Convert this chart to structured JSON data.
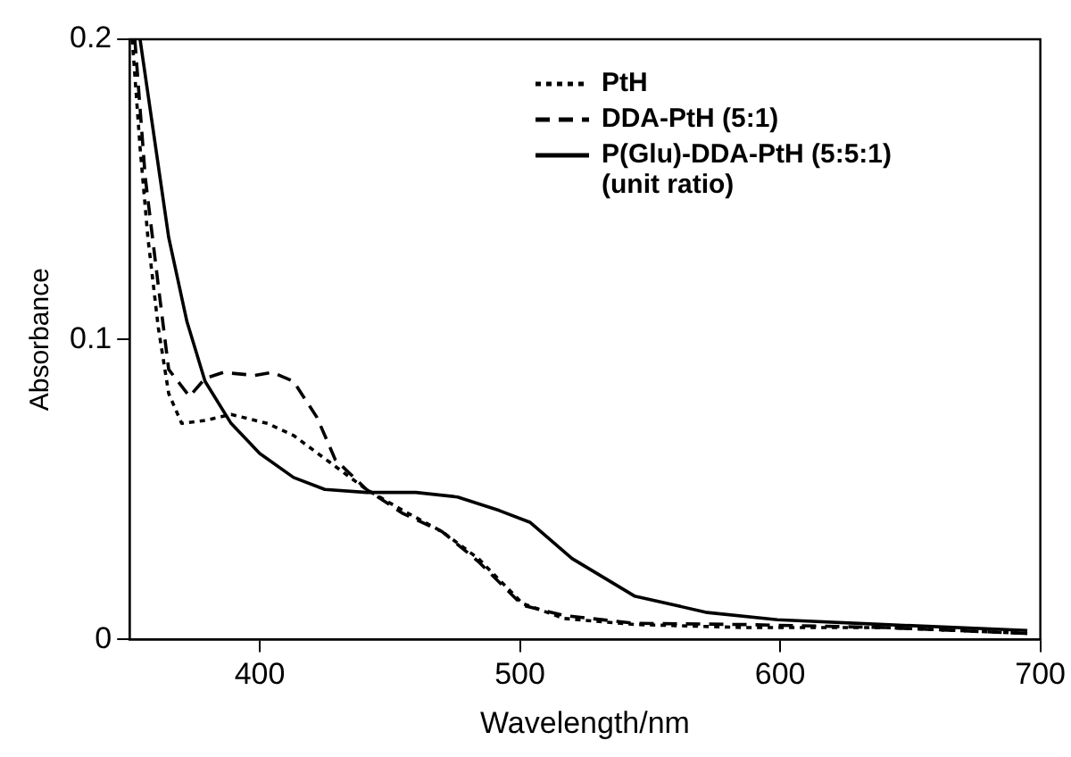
{
  "chart_data": {
    "type": "line",
    "xlabel": "Wavelength/nm",
    "ylabel": "Absorbance",
    "xlim": [
      350,
      700
    ],
    "xticks": [
      400,
      500,
      600,
      700
    ],
    "ylim": [
      0,
      0.2
    ],
    "yticks": [
      0,
      0.1,
      0.2
    ],
    "grid": false,
    "legend": "top right",
    "marker": "none",
    "series": [
      {
        "name": "PtH",
        "color": "#000000",
        "line_style": "dotted",
        "x": [
          351,
          354,
          357,
          361,
          365,
          370,
          379,
          389,
          403,
          413,
          427,
          441,
          455,
          470,
          484,
          501,
          517,
          544,
          586,
          640,
          695
        ],
        "values": [
          0.2,
          0.164,
          0.134,
          0.104,
          0.082,
          0.072,
          0.073,
          0.075,
          0.072,
          0.068,
          0.059,
          0.05,
          0.043,
          0.036,
          0.027,
          0.012,
          0.007,
          0.005,
          0.004,
          0.004,
          0.002
        ]
      },
      {
        "name": "DDA-PtH (5:1)",
        "color": "#000000",
        "line_style": "dashed",
        "x": [
          352,
          356,
          361,
          365,
          373,
          379,
          386,
          398,
          405,
          413,
          422,
          429,
          441,
          455,
          470,
          484,
          501,
          517,
          544,
          586,
          640,
          695
        ],
        "values": [
          0.2,
          0.154,
          0.118,
          0.09,
          0.081,
          0.087,
          0.089,
          0.088,
          0.089,
          0.086,
          0.074,
          0.06,
          0.05,
          0.042,
          0.036,
          0.026,
          0.0114,
          0.008,
          0.0054,
          0.005,
          0.004,
          0.002
        ]
      },
      {
        "name": "P(Glu)-DDA-PtH (5:5:1) (unit ratio)",
        "color": "#000000",
        "line_style": "solid",
        "x": [
          354,
          365,
          372,
          379,
          389,
          400,
          413,
          425,
          441,
          460,
          476,
          492,
          504,
          520,
          544,
          572,
          599,
          640,
          695
        ],
        "values": [
          0.2,
          0.134,
          0.106,
          0.086,
          0.072,
          0.062,
          0.054,
          0.05,
          0.049,
          0.049,
          0.0475,
          0.043,
          0.039,
          0.027,
          0.0145,
          0.009,
          0.0066,
          0.005,
          0.003
        ]
      }
    ]
  }
}
